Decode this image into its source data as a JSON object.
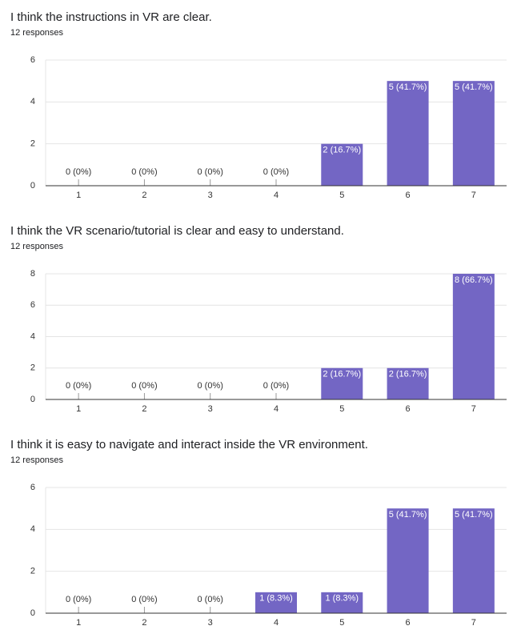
{
  "chart_data": [
    {
      "type": "bar",
      "title": "I think the instructions in VR are clear.",
      "subtitle": "12 responses",
      "categories": [
        "1",
        "2",
        "3",
        "4",
        "5",
        "6",
        "7"
      ],
      "values": [
        0,
        0,
        0,
        0,
        2,
        5,
        5
      ],
      "value_labels": [
        "0 (0%)",
        "0 (0%)",
        "0 (0%)",
        "0 (0%)",
        "2 (16.7%)",
        "5 (41.7%)",
        "5 (41.7%)"
      ],
      "color": "#7366c4",
      "ylim": [
        0,
        6
      ],
      "yticks": [
        0,
        2,
        4,
        6
      ],
      "grid": true
    },
    {
      "type": "bar",
      "title": "I think the VR scenario/tutorial is clear and easy to understand.",
      "subtitle": "12 responses",
      "categories": [
        "1",
        "2",
        "3",
        "4",
        "5",
        "6",
        "7"
      ],
      "values": [
        0,
        0,
        0,
        0,
        2,
        2,
        8
      ],
      "value_labels": [
        "0 (0%)",
        "0 (0%)",
        "0 (0%)",
        "0 (0%)",
        "2 (16.7%)",
        "2 (16.7%)",
        "8 (66.7%)"
      ],
      "color": "#7366c4",
      "ylim": [
        0,
        8
      ],
      "yticks": [
        0,
        2,
        4,
        6,
        8
      ],
      "grid": true
    },
    {
      "type": "bar",
      "title": "I think it is easy to navigate and interact inside the VR environment.",
      "subtitle": "12 responses",
      "categories": [
        "1",
        "2",
        "3",
        "4",
        "5",
        "6",
        "7"
      ],
      "values": [
        0,
        0,
        0,
        1,
        1,
        5,
        5
      ],
      "value_labels": [
        "0 (0%)",
        "0 (0%)",
        "0 (0%)",
        "1 (8.3%)",
        "1 (8.3%)",
        "5 (41.7%)",
        "5 (41.7%)"
      ],
      "color": "#7366c4",
      "ylim": [
        0,
        6
      ],
      "yticks": [
        0,
        2,
        4,
        6
      ],
      "grid": true
    }
  ]
}
